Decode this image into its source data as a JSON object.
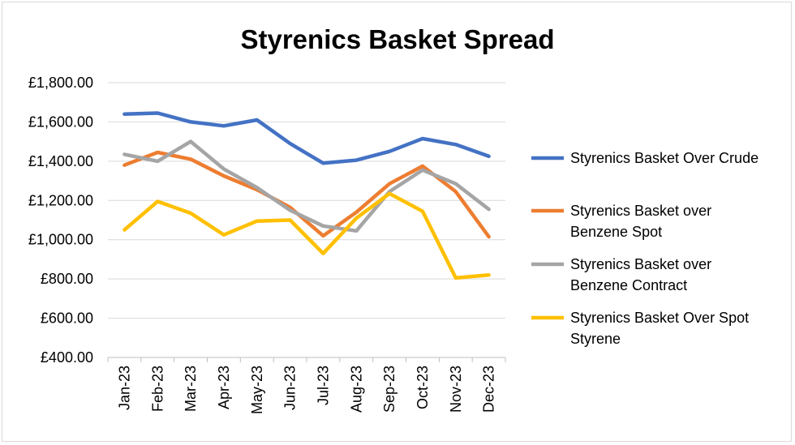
{
  "chart_data": {
    "type": "line",
    "title": "Styrenics Basket Spread",
    "xlabel": "",
    "ylabel": "",
    "categories": [
      "Jan-23",
      "Feb-23",
      "Mar-23",
      "Apr-23",
      "May-23",
      "Jun-23",
      "Jul-23",
      "Aug-23",
      "Sep-23",
      "Oct-23",
      "Nov-23",
      "Dec-23"
    ],
    "ylim": [
      400,
      1800
    ],
    "y_ticks": [
      400,
      600,
      800,
      1000,
      1200,
      1400,
      1600,
      1800
    ],
    "y_tick_labels": [
      "£400.00",
      "£600.00",
      "£800.00",
      "£1,000.00",
      "£1,200.00",
      "£1,400.00",
      "£1,600.00",
      "£1,800.00"
    ],
    "grid": "horizontal",
    "legend_position": "right",
    "series": [
      {
        "name": "Styrenics Basket Over Crude",
        "legend_lines": [
          "Styrenics Basket Over Crude"
        ],
        "color": "#4472c4",
        "values": [
          1640,
          1645,
          1600,
          1580,
          1610,
          1490,
          1390,
          1405,
          1450,
          1515,
          1485,
          1425
        ]
      },
      {
        "name": "Styrenics Basket over Benzene Spot",
        "legend_lines": [
          "Styrenics Basket over",
          "Benzene Spot"
        ],
        "color": "#ed7d31",
        "values": [
          1380,
          1445,
          1410,
          1325,
          1255,
          1165,
          1020,
          1140,
          1285,
          1375,
          1245,
          1015
        ]
      },
      {
        "name": "Styrenics Basket over Benzene Contract",
        "legend_lines": [
          "Styrenics Basket over",
          "Benzene Contract"
        ],
        "color": "#a5a5a5",
        "values": [
          1435,
          1400,
          1500,
          1360,
          1265,
          1150,
          1070,
          1045,
          1245,
          1355,
          1285,
          1155
        ]
      },
      {
        "name": "Styrenics Basket Over Spot Styrene",
        "legend_lines": [
          "Styrenics Basket Over Spot",
          "Styrene"
        ],
        "color": "#ffc000",
        "values": [
          1050,
          1195,
          1135,
          1025,
          1095,
          1100,
          930,
          1110,
          1235,
          1145,
          805,
          820
        ]
      }
    ]
  }
}
